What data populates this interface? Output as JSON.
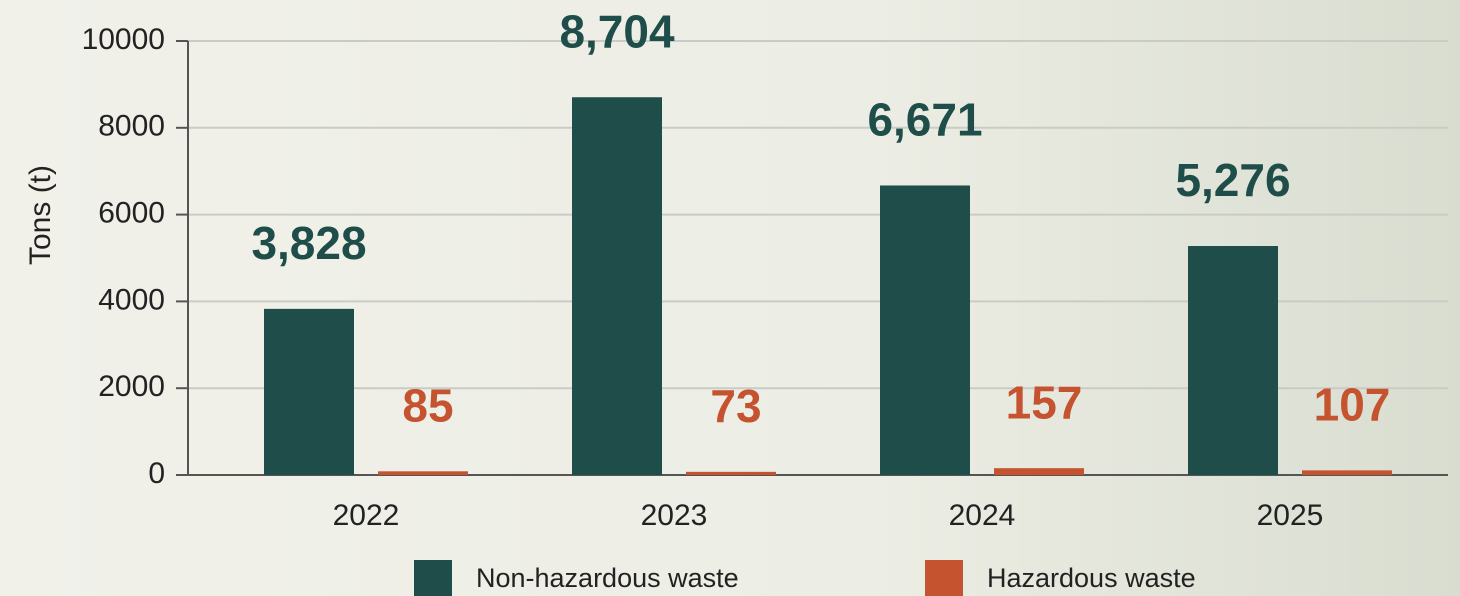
{
  "chart_data": {
    "type": "bar",
    "y_label": "Tons (t)",
    "categories": [
      "2022",
      "2023",
      "2024",
      "2025"
    ],
    "series": [
      {
        "name": "Non-hazardous waste",
        "color": "#1f4d49",
        "values": [
          3828,
          8704,
          6671,
          5276
        ],
        "value_labels": [
          "3,828",
          "8,704",
          "6,671",
          "5,276"
        ]
      },
      {
        "name": "Hazardous waste",
        "color": "#c5532f",
        "values": [
          85,
          73,
          157,
          107
        ]
      }
    ],
    "ylim": [
      0,
      10000
    ],
    "yticks": [
      0,
      2000,
      4000,
      6000,
      8000,
      10000
    ],
    "grid": true
  }
}
